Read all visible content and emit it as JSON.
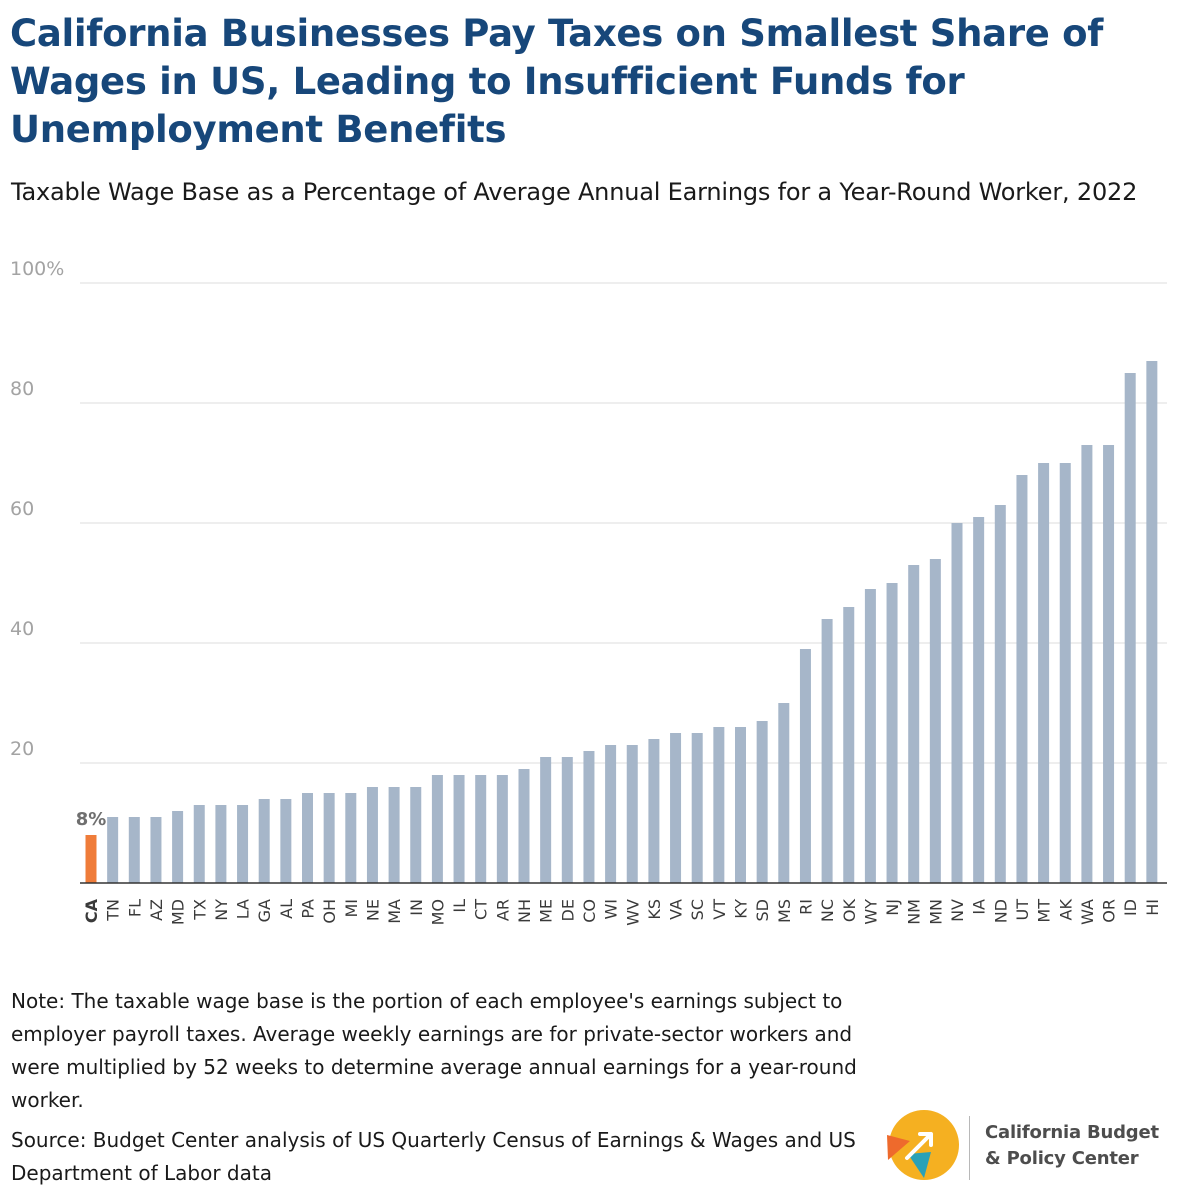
{
  "title": "California Businesses Pay Taxes on Smallest Share of Wages in US, Leading to Insufficient Funds for Unemployment Benefits",
  "subtitle": "Taxable Wage Base as a Percentage of Average Annual Earnings for a Year-Round Worker, 2022",
  "note": "Note: The taxable wage base is the portion of each employee's earnings subject to employer payroll taxes. Average weekly earnings are for private-sector workers and were multiplied by 52 weeks to determine average annual earnings for a year-round worker.",
  "source": "Source: Budget Center analysis of US Quarterly Census of Earnings & Wages and US Department of Labor data",
  "logo": {
    "line1": "California Budget",
    "line2": "& Policy Center",
    "colors": [
      "#f5b021",
      "#ee6a2c",
      "#2aa1b7"
    ]
  },
  "colors": {
    "title": "#17477a",
    "bar": "#a6b6c9",
    "highlight": "#ef7c3a",
    "grid": "#e3e3e3",
    "tick": "#a3a3a3"
  },
  "chart_data": {
    "type": "bar",
    "categories": [
      "CA",
      "TN",
      "FL",
      "AZ",
      "MD",
      "TX",
      "NY",
      "LA",
      "GA",
      "AL",
      "PA",
      "OH",
      "MI",
      "NE",
      "MA",
      "IN",
      "MO",
      "IL",
      "CT",
      "AR",
      "NH",
      "ME",
      "DE",
      "CO",
      "WI",
      "WV",
      "KS",
      "VA",
      "SC",
      "VT",
      "KY",
      "SD",
      "MS",
      "RI",
      "NC",
      "OK",
      "WY",
      "NJ",
      "NM",
      "MN",
      "NV",
      "IA",
      "ND",
      "UT",
      "MT",
      "AK",
      "WA",
      "OR",
      "ID",
      "HI"
    ],
    "values": [
      8,
      11,
      11,
      11,
      12,
      13,
      13,
      13,
      14,
      14,
      15,
      15,
      15,
      16,
      16,
      16,
      18,
      18,
      18,
      18,
      19,
      21,
      21,
      22,
      23,
      23,
      24,
      25,
      25,
      26,
      26,
      27,
      30,
      39,
      44,
      46,
      49,
      50,
      53,
      54,
      60,
      61,
      63,
      68,
      70,
      70,
      73,
      73,
      85,
      87
    ],
    "highlight": "CA",
    "highlight_label": "8%",
    "yticks": [
      "100%",
      "80",
      "60",
      "40",
      "20"
    ],
    "ytick_values": [
      100,
      80,
      60,
      40,
      20
    ],
    "ylim": [
      0,
      100
    ],
    "grid": true,
    "xlabel": "",
    "ylabel": ""
  }
}
